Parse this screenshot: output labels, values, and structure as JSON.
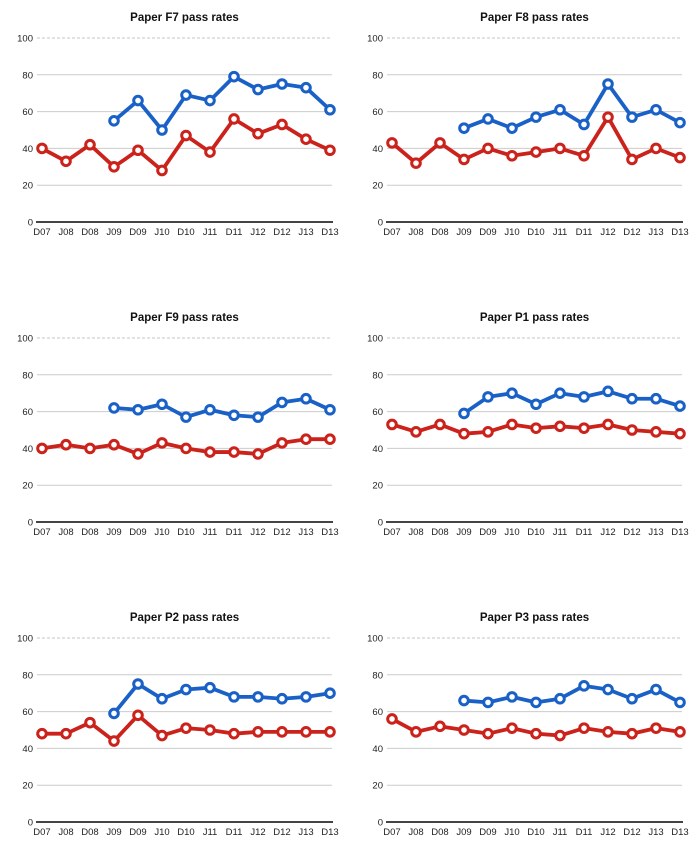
{
  "theme": {
    "background": "#ffffff",
    "gridline_color": "#cccccc",
    "top_gridline_color": "#c6c6c6",
    "axis_color": "#444444",
    "tick_text_color": "#222222",
    "title_color": "#111111",
    "marker_fill": "#ffffff",
    "blue": "#1a61c7",
    "red": "#cb221b"
  },
  "chart_data": [
    {
      "type": "line",
      "title": "Paper F7 pass rates",
      "categories": [
        "D07",
        "J08",
        "D08",
        "J09",
        "D09",
        "J10",
        "D10",
        "J11",
        "D11",
        "J12",
        "D12",
        "J13",
        "D13"
      ],
      "ylim": [
        0,
        100
      ],
      "yticks": [
        0,
        20,
        40,
        60,
        80,
        100
      ],
      "grid": true,
      "legend": "none",
      "series": [
        {
          "color": "#1a61c7",
          "values": [
            null,
            null,
            null,
            55,
            66,
            50,
            69,
            66,
            79,
            72,
            75,
            73,
            61
          ]
        },
        {
          "color": "#cb221b",
          "values": [
            40,
            33,
            42,
            30,
            39,
            28,
            47,
            38,
            56,
            48,
            53,
            45,
            39
          ]
        }
      ]
    },
    {
      "type": "line",
      "title": "Paper F8 pass rates",
      "categories": [
        "D07",
        "J08",
        "D08",
        "J09",
        "D09",
        "J10",
        "D10",
        "J11",
        "D11",
        "J12",
        "D12",
        "J13",
        "D13"
      ],
      "ylim": [
        0,
        100
      ],
      "yticks": [
        0,
        20,
        40,
        60,
        80,
        100
      ],
      "grid": true,
      "legend": "none",
      "series": [
        {
          "color": "#1a61c7",
          "values": [
            null,
            null,
            null,
            51,
            56,
            51,
            57,
            61,
            53,
            75,
            57,
            61,
            54
          ]
        },
        {
          "color": "#cb221b",
          "values": [
            43,
            32,
            43,
            34,
            40,
            36,
            38,
            40,
            36,
            57,
            34,
            40,
            35
          ]
        }
      ]
    },
    {
      "type": "line",
      "title": "Paper F9 pass rates",
      "categories": [
        "D07",
        "J08",
        "D08",
        "J09",
        "D09",
        "J10",
        "D10",
        "J11",
        "D11",
        "J12",
        "D12",
        "J13",
        "D13"
      ],
      "ylim": [
        0,
        100
      ],
      "yticks": [
        0,
        20,
        40,
        60,
        80,
        100
      ],
      "grid": true,
      "legend": "none",
      "series": [
        {
          "color": "#1a61c7",
          "values": [
            null,
            null,
            null,
            62,
            61,
            64,
            57,
            61,
            58,
            57,
            65,
            67,
            61
          ]
        },
        {
          "color": "#cb221b",
          "values": [
            40,
            42,
            40,
            42,
            37,
            43,
            40,
            38,
            38,
            37,
            43,
            45,
            45
          ]
        }
      ]
    },
    {
      "type": "line",
      "title": "Paper P1 pass rates",
      "categories": [
        "D07",
        "J08",
        "D08",
        "J09",
        "D09",
        "J10",
        "D10",
        "J11",
        "D11",
        "J12",
        "D12",
        "J13",
        "D13"
      ],
      "ylim": [
        0,
        100
      ],
      "yticks": [
        0,
        20,
        40,
        60,
        80,
        100
      ],
      "grid": true,
      "legend": "none",
      "series": [
        {
          "color": "#1a61c7",
          "values": [
            null,
            null,
            null,
            59,
            68,
            70,
            64,
            70,
            68,
            71,
            67,
            67,
            63
          ]
        },
        {
          "color": "#cb221b",
          "values": [
            53,
            49,
            53,
            48,
            49,
            53,
            51,
            52,
            51,
            53,
            50,
            49,
            48
          ]
        }
      ]
    },
    {
      "type": "line",
      "title": "Paper P2 pass rates",
      "categories": [
        "D07",
        "J08",
        "D08",
        "J09",
        "D09",
        "J10",
        "D10",
        "J11",
        "D11",
        "J12",
        "D12",
        "J13",
        "D13"
      ],
      "ylim": [
        0,
        100
      ],
      "yticks": [
        0,
        20,
        40,
        60,
        80,
        100
      ],
      "grid": true,
      "legend": "none",
      "series": [
        {
          "color": "#1a61c7",
          "values": [
            null,
            null,
            null,
            59,
            75,
            67,
            72,
            73,
            68,
            68,
            67,
            68,
            70
          ]
        },
        {
          "color": "#cb221b",
          "values": [
            48,
            48,
            54,
            44,
            58,
            47,
            51,
            50,
            48,
            49,
            49,
            49,
            49
          ]
        }
      ]
    },
    {
      "type": "line",
      "title": "Paper P3 pass rates",
      "categories": [
        "D07",
        "J08",
        "D08",
        "J09",
        "D09",
        "J10",
        "D10",
        "J11",
        "D11",
        "J12",
        "D12",
        "J13",
        "D13"
      ],
      "ylim": [
        0,
        100
      ],
      "yticks": [
        0,
        20,
        40,
        60,
        80,
        100
      ],
      "grid": true,
      "legend": "none",
      "series": [
        {
          "color": "#1a61c7",
          "values": [
            null,
            null,
            null,
            66,
            65,
            68,
            65,
            67,
            74,
            72,
            67,
            72,
            65
          ]
        },
        {
          "color": "#cb221b",
          "values": [
            56,
            49,
            52,
            50,
            48,
            51,
            48,
            47,
            51,
            49,
            48,
            51,
            49
          ]
        }
      ]
    }
  ]
}
